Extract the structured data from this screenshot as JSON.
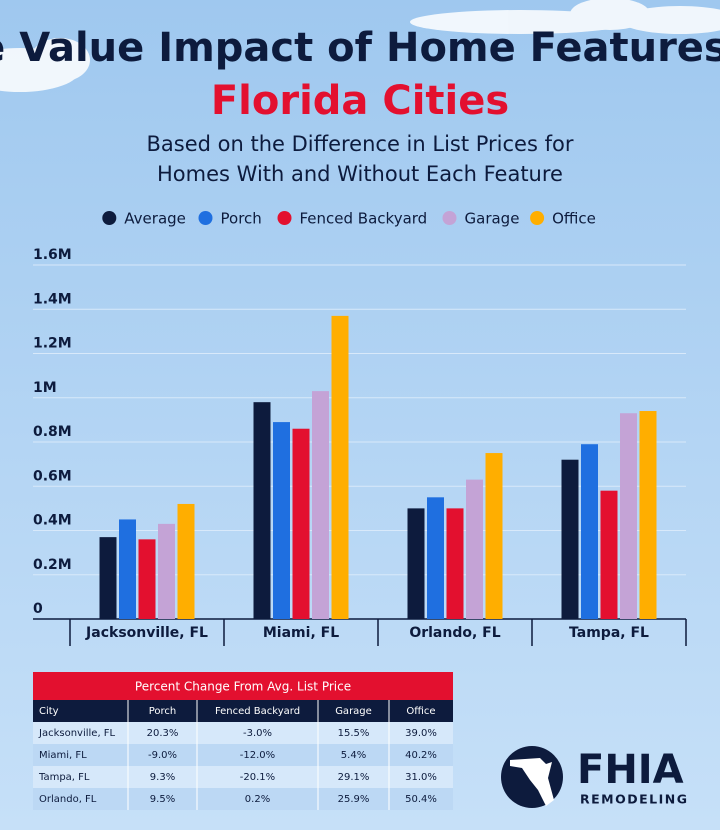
{
  "chart_data": {
    "type": "bar",
    "title": "The Value Impact of Home Features on",
    "title_highlight": "Florida Cities",
    "subtitle": [
      "Based on the Difference in List Prices for",
      "Homes With and Without Each Feature"
    ],
    "categories": [
      "Jacksonville, FL",
      "Miami, FL",
      "Orlando, FL",
      "Tampa, FL"
    ],
    "series": [
      {
        "name": "Average",
        "color": "#0d1b3d",
        "values": [
          370000,
          980000,
          500000,
          720000
        ]
      },
      {
        "name": "Porch",
        "color": "#1f6fe0",
        "values": [
          450000,
          890000,
          550000,
          790000
        ]
      },
      {
        "name": "Fenced Backyard",
        "color": "#e3102f",
        "values": [
          360000,
          860000,
          500000,
          580000
        ]
      },
      {
        "name": "Garage",
        "color": "#c4a3d6",
        "values": [
          430000,
          1030000,
          630000,
          930000
        ]
      },
      {
        "name": "Office",
        "color": "#ffae00",
        "values": [
          520000,
          1370000,
          750000,
          940000
        ]
      }
    ],
    "ylim": [
      0,
      1600000
    ],
    "yticks": [
      0,
      {
        "value": 200000,
        "label": "0.2M"
      },
      {
        "value": 400000,
        "label": "0.4M"
      },
      {
        "value": 600000,
        "label": "0.6M"
      },
      {
        "value": 800000,
        "label": "0.8M"
      },
      {
        "value": 1000000,
        "label": "1M"
      },
      {
        "value": 1200000,
        "label": "1.2M"
      },
      {
        "value": 1400000,
        "label": "1.4M"
      },
      {
        "value": 1600000,
        "label": "1.6M"
      }
    ],
    "grid": true,
    "legend": "top"
  },
  "table": {
    "title": "Percent Change From Avg. List Price",
    "columns": [
      "City",
      "Porch",
      "Fenced Backyard",
      "Garage",
      "Office"
    ],
    "rows": [
      [
        "Jacksonville, FL",
        "20.3%",
        "-3.0%",
        "15.5%",
        "39.0%"
      ],
      [
        "Miami, FL",
        "-9.0%",
        "-12.0%",
        "5.4%",
        "40.2%"
      ],
      [
        "Tampa, FL",
        "9.3%",
        "-20.1%",
        "29.1%",
        "31.0%"
      ],
      [
        "Orlando, FL",
        "9.5%",
        "0.2%",
        "25.9%",
        "50.4%"
      ]
    ]
  },
  "logo": {
    "name": "FHIA",
    "tagline": "REMODELING"
  }
}
